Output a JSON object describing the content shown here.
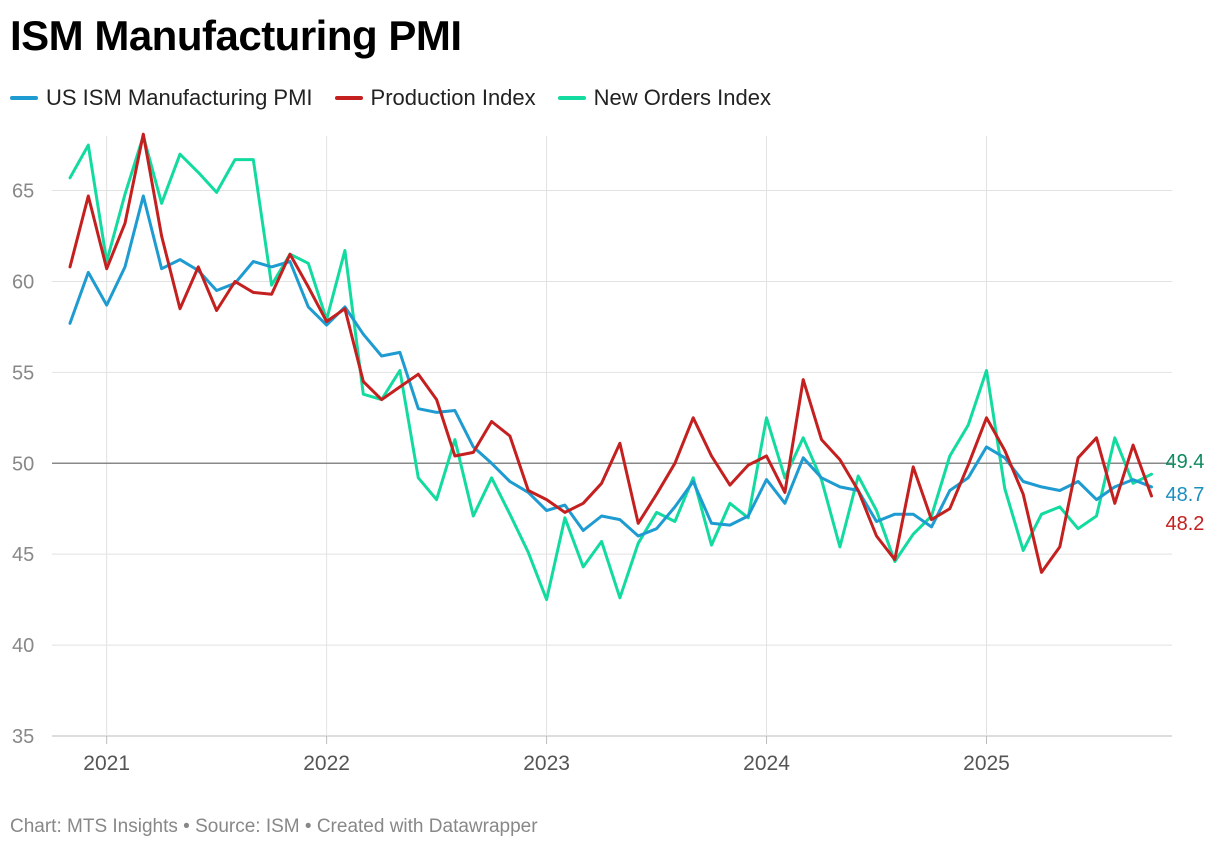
{
  "title": "ISM Manufacturing PMI",
  "footer": "Chart: MTS Insights • Source: ISM • Created with Datawrapper",
  "legend": [
    {
      "name": "US ISM Manufacturing PMI",
      "color": "#1e9bd0"
    },
    {
      "name": "Production Index",
      "color": "#c4201f"
    },
    {
      "name": "New Orders Index",
      "color": "#13dba0"
    }
  ],
  "chart_data": {
    "type": "line",
    "title": "ISM Manufacturing PMI",
    "xlabel": "",
    "ylabel": "",
    "x_start": "2020-11",
    "x_ticks": [
      "2021",
      "2022",
      "2023",
      "2024",
      "2025"
    ],
    "y_ticks": [
      35,
      40,
      45,
      50,
      55,
      60,
      65
    ],
    "ylim": [
      35,
      68
    ],
    "reference_line": 50,
    "grid": true,
    "legend_position": "top-left",
    "series": [
      {
        "name": "US ISM Manufacturing PMI",
        "color": "#1e9bd0",
        "end_label": "48.7",
        "end_label_color": "#1a8fc0",
        "values": [
          57.7,
          60.5,
          58.7,
          60.8,
          64.7,
          60.7,
          61.2,
          60.6,
          59.5,
          59.9,
          61.1,
          60.8,
          61.1,
          58.6,
          57.6,
          58.6,
          57.1,
          55.9,
          56.1,
          53.0,
          52.8,
          52.9,
          50.9,
          50.0,
          49.0,
          48.4,
          47.4,
          47.7,
          46.3,
          47.1,
          46.9,
          46.0,
          46.4,
          47.6,
          49.0,
          46.7,
          46.6,
          47.1,
          49.1,
          47.8,
          50.3,
          49.2,
          48.7,
          48.5,
          46.8,
          47.2,
          47.2,
          46.5,
          48.5,
          49.2,
          50.9,
          50.3,
          49.0,
          48.7,
          48.5,
          49.0,
          48.0,
          48.7,
          49.1,
          48.7
        ]
      },
      {
        "name": "Production Index",
        "color": "#c4201f",
        "end_label": "48.2",
        "end_label_color": "#c4201f",
        "values": [
          60.8,
          64.7,
          60.7,
          63.2,
          68.1,
          62.5,
          58.5,
          60.8,
          58.4,
          60.0,
          59.4,
          59.3,
          61.5,
          59.7,
          57.8,
          58.5,
          54.5,
          53.5,
          54.2,
          54.9,
          53.5,
          50.4,
          50.6,
          52.3,
          51.5,
          48.5,
          48.0,
          47.3,
          47.8,
          48.9,
          51.1,
          46.7,
          48.3,
          50.0,
          52.5,
          50.4,
          48.8,
          49.9,
          50.4,
          48.4,
          54.6,
          51.3,
          50.2,
          48.5,
          46.0,
          44.7,
          49.8,
          46.9,
          47.5,
          49.9,
          52.5,
          50.7,
          48.3,
          44.0,
          45.4,
          50.3,
          51.4,
          47.8,
          51.0,
          48.2
        ]
      },
      {
        "name": "New Orders Index",
        "color": "#13dba0",
        "end_label": "49.4",
        "end_label_color": "#0d8a60",
        "values": [
          65.7,
          67.5,
          61.1,
          64.8,
          68.0,
          64.3,
          67.0,
          66.0,
          64.9,
          66.7,
          66.7,
          59.8,
          61.5,
          61.0,
          57.9,
          61.7,
          53.8,
          53.5,
          55.1,
          49.2,
          48.0,
          51.3,
          47.1,
          49.2,
          47.2,
          45.1,
          42.5,
          47.0,
          44.3,
          45.7,
          42.6,
          45.6,
          47.3,
          46.8,
          49.2,
          45.5,
          47.8,
          47.0,
          52.5,
          49.2,
          51.4,
          49.1,
          45.4,
          49.3,
          47.4,
          44.6,
          46.1,
          47.1,
          50.4,
          52.1,
          55.1,
          48.6,
          45.2,
          47.2,
          47.6,
          46.4,
          47.1,
          51.4,
          48.9,
          49.4
        ]
      }
    ]
  }
}
